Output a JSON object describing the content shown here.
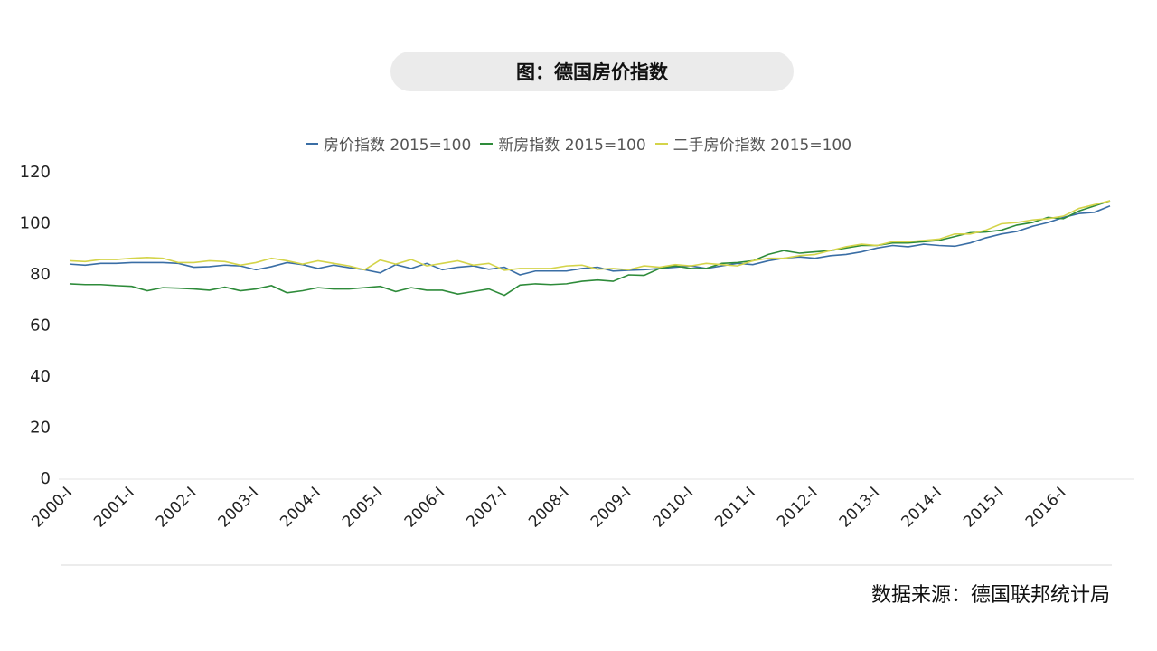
{
  "chart_data": {
    "type": "line",
    "title": "图：德国房价指数",
    "source": "数据来源：德国联邦统计局",
    "categories": [
      "2000-I",
      null,
      null,
      null,
      "2001-I",
      null,
      null,
      null,
      "2002-I",
      null,
      null,
      null,
      "2003-I",
      null,
      null,
      null,
      "2004-I",
      null,
      null,
      null,
      "2005-I",
      null,
      null,
      null,
      "2006-I",
      null,
      null,
      null,
      "2007-I",
      null,
      null,
      null,
      "2008-I",
      null,
      null,
      null,
      "2009-I",
      null,
      null,
      null,
      "2010-I",
      null,
      null,
      null,
      "2011-I",
      null,
      null,
      null,
      "2012-I",
      null,
      null,
      null,
      "2013-I",
      null,
      null,
      null,
      "2014-I",
      null,
      null,
      null,
      "2015-I",
      null,
      null,
      null,
      "2016-I",
      null,
      null,
      null
    ],
    "series": [
      {
        "name": "房价指数 2015=100",
        "color": "#3a6ea5",
        "values": [
          84.2,
          83.8,
          84.5,
          84.5,
          84.8,
          84.8,
          84.8,
          84.5,
          83.0,
          83.2,
          83.8,
          83.5,
          82.0,
          83.2,
          84.8,
          84.0,
          82.5,
          83.8,
          82.8,
          82.0,
          80.8,
          84.0,
          82.5,
          84.5,
          82.0,
          83.0,
          83.5,
          82.2,
          83.0,
          80.0,
          81.5,
          81.5,
          81.5,
          82.5,
          83.0,
          81.5,
          81.8,
          82.0,
          82.5,
          83.0,
          83.5,
          82.5,
          83.5,
          84.5,
          84.0,
          85.5,
          86.5,
          87.0,
          86.5,
          87.5,
          88.0,
          89.0,
          90.5,
          91.5,
          91.0,
          92.0,
          91.5,
          91.2,
          92.5,
          94.5,
          96.0,
          97.0,
          99.0,
          100.5,
          102.5,
          104.0,
          104.5,
          107.0
        ]
      },
      {
        "name": "新房指数 2015=100",
        "color": "#2e8b3a",
        "values": [
          76.5,
          76.2,
          76.2,
          75.8,
          75.5,
          73.8,
          75.0,
          74.8,
          74.5,
          74.0,
          75.2,
          73.8,
          74.5,
          75.8,
          73.0,
          73.8,
          75.0,
          74.5,
          74.5,
          75.0,
          75.5,
          73.5,
          75.0,
          74.0,
          74.0,
          72.5,
          73.5,
          74.5,
          72.0,
          76.0,
          76.5,
          76.2,
          76.5,
          77.5,
          78.0,
          77.5,
          80.0,
          79.8,
          82.5,
          83.5,
          82.5,
          82.5,
          84.5,
          84.8,
          85.5,
          88.0,
          89.5,
          88.5,
          89.0,
          89.5,
          90.5,
          91.5,
          91.5,
          92.5,
          92.5,
          93.0,
          93.5,
          95.0,
          96.5,
          96.8,
          97.5,
          99.5,
          100.5,
          102.5,
          102.0,
          105.0,
          107.0,
          109.0
        ]
      },
      {
        "name": "二手房价指数 2015=100",
        "color": "#d4d44a",
        "values": [
          85.5,
          85.2,
          86.0,
          86.0,
          86.5,
          86.8,
          86.5,
          84.8,
          84.8,
          85.5,
          85.2,
          83.8,
          84.8,
          86.5,
          85.5,
          84.2,
          85.5,
          84.5,
          83.5,
          82.0,
          85.8,
          84.2,
          86.0,
          83.5,
          84.5,
          85.5,
          83.8,
          84.5,
          81.8,
          82.5,
          82.5,
          82.5,
          83.5,
          83.8,
          82.2,
          82.5,
          82.0,
          83.5,
          83.0,
          84.0,
          83.5,
          84.5,
          84.0,
          83.5,
          85.5,
          86.5,
          86.5,
          87.5,
          88.0,
          89.5,
          91.0,
          92.0,
          91.5,
          93.0,
          93.0,
          93.5,
          94.0,
          96.0,
          96.0,
          97.5,
          100.0,
          100.5,
          101.5,
          102.0,
          103.0,
          106.0,
          107.5,
          109.0
        ]
      }
    ],
    "ylim": [
      0,
      120
    ],
    "yticks": [
      0,
      20,
      40,
      60,
      80,
      100,
      120
    ],
    "grid": false
  }
}
